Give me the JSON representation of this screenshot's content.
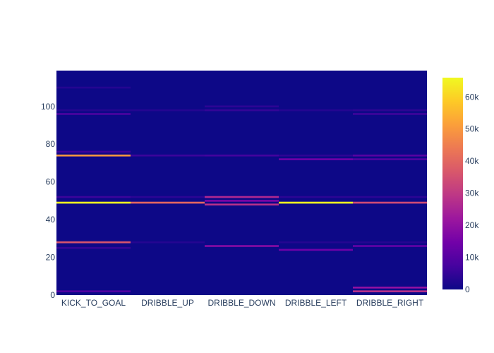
{
  "chart_data": {
    "type": "heatmap",
    "title": "",
    "xlabel": "",
    "ylabel": "",
    "categories": [
      "KICK_TO_GOAL",
      "DRIBBLE_UP",
      "DRIBBLE_DOWN",
      "DRIBBLE_LEFT",
      "DRIBBLE_RIGHT"
    ],
    "y_range": [
      0,
      119
    ],
    "y_ticks": [
      0,
      20,
      40,
      60,
      80,
      100
    ],
    "colorbar": {
      "range": [
        0,
        66000
      ],
      "ticks": [
        0,
        10000,
        20000,
        30000,
        40000,
        50000,
        60000
      ],
      "tick_labels": [
        "0",
        "10k",
        "20k",
        "30k",
        "40k",
        "50k",
        "60k"
      ]
    },
    "colorscale": [
      "#0d0887",
      "#46039f",
      "#7201a8",
      "#9c179e",
      "#bd3786",
      "#d8576b",
      "#ed7953",
      "#fb9f3a",
      "#fdca26",
      "#f0f921"
    ],
    "cells": [
      {
        "category": "KICK_TO_GOAL",
        "y": 2,
        "value": 9000
      },
      {
        "category": "KICK_TO_GOAL",
        "y": 25,
        "value": 5000
      },
      {
        "category": "KICK_TO_GOAL",
        "y": 28,
        "value": 36000
      },
      {
        "category": "KICK_TO_GOAL",
        "y": 49,
        "value": 66000
      },
      {
        "category": "KICK_TO_GOAL",
        "y": 52,
        "value": 6000
      },
      {
        "category": "KICK_TO_GOAL",
        "y": 74,
        "value": 50000
      },
      {
        "category": "KICK_TO_GOAL",
        "y": 76,
        "value": 6000
      },
      {
        "category": "KICK_TO_GOAL",
        "y": 96,
        "value": 8000
      },
      {
        "category": "KICK_TO_GOAL",
        "y": 98,
        "value": 3000
      },
      {
        "category": "KICK_TO_GOAL",
        "y": 110,
        "value": 3000
      },
      {
        "category": "DRIBBLE_UP",
        "y": 28,
        "value": 3000
      },
      {
        "category": "DRIBBLE_UP",
        "y": 49,
        "value": 40000
      },
      {
        "category": "DRIBBLE_UP",
        "y": 52,
        "value": 4000
      },
      {
        "category": "DRIBBLE_UP",
        "y": 74,
        "value": 6000
      },
      {
        "category": "DRIBBLE_UP",
        "y": 98,
        "value": 3000
      },
      {
        "category": "DRIBBLE_DOWN",
        "y": 26,
        "value": 18000
      },
      {
        "category": "DRIBBLE_DOWN",
        "y": 48,
        "value": 28000
      },
      {
        "category": "DRIBBLE_DOWN",
        "y": 50,
        "value": 16000
      },
      {
        "category": "DRIBBLE_DOWN",
        "y": 52,
        "value": 26000
      },
      {
        "category": "DRIBBLE_DOWN",
        "y": 74,
        "value": 7000
      },
      {
        "category": "DRIBBLE_DOWN",
        "y": 98,
        "value": 5000
      },
      {
        "category": "DRIBBLE_DOWN",
        "y": 100,
        "value": 4000
      },
      {
        "category": "DRIBBLE_LEFT",
        "y": 24,
        "value": 14000
      },
      {
        "category": "DRIBBLE_LEFT",
        "y": 28,
        "value": 3000
      },
      {
        "category": "DRIBBLE_LEFT",
        "y": 49,
        "value": 66000
      },
      {
        "category": "DRIBBLE_LEFT",
        "y": 52,
        "value": 4000
      },
      {
        "category": "DRIBBLE_LEFT",
        "y": 72,
        "value": 14000
      },
      {
        "category": "DRIBBLE_LEFT",
        "y": 74,
        "value": 4000
      },
      {
        "category": "DRIBBLE_LEFT",
        "y": 98,
        "value": 3000
      },
      {
        "category": "DRIBBLE_RIGHT",
        "y": 2,
        "value": 28000
      },
      {
        "category": "DRIBBLE_RIGHT",
        "y": 4,
        "value": 20000
      },
      {
        "category": "DRIBBLE_RIGHT",
        "y": 26,
        "value": 12000
      },
      {
        "category": "DRIBBLE_RIGHT",
        "y": 28,
        "value": 3000
      },
      {
        "category": "DRIBBLE_RIGHT",
        "y": 49,
        "value": 34000
      },
      {
        "category": "DRIBBLE_RIGHT",
        "y": 52,
        "value": 4000
      },
      {
        "category": "DRIBBLE_RIGHT",
        "y": 72,
        "value": 9000
      },
      {
        "category": "DRIBBLE_RIGHT",
        "y": 74,
        "value": 10000
      },
      {
        "category": "DRIBBLE_RIGHT",
        "y": 96,
        "value": 6000
      },
      {
        "category": "DRIBBLE_RIGHT",
        "y": 98,
        "value": 4000
      }
    ]
  }
}
